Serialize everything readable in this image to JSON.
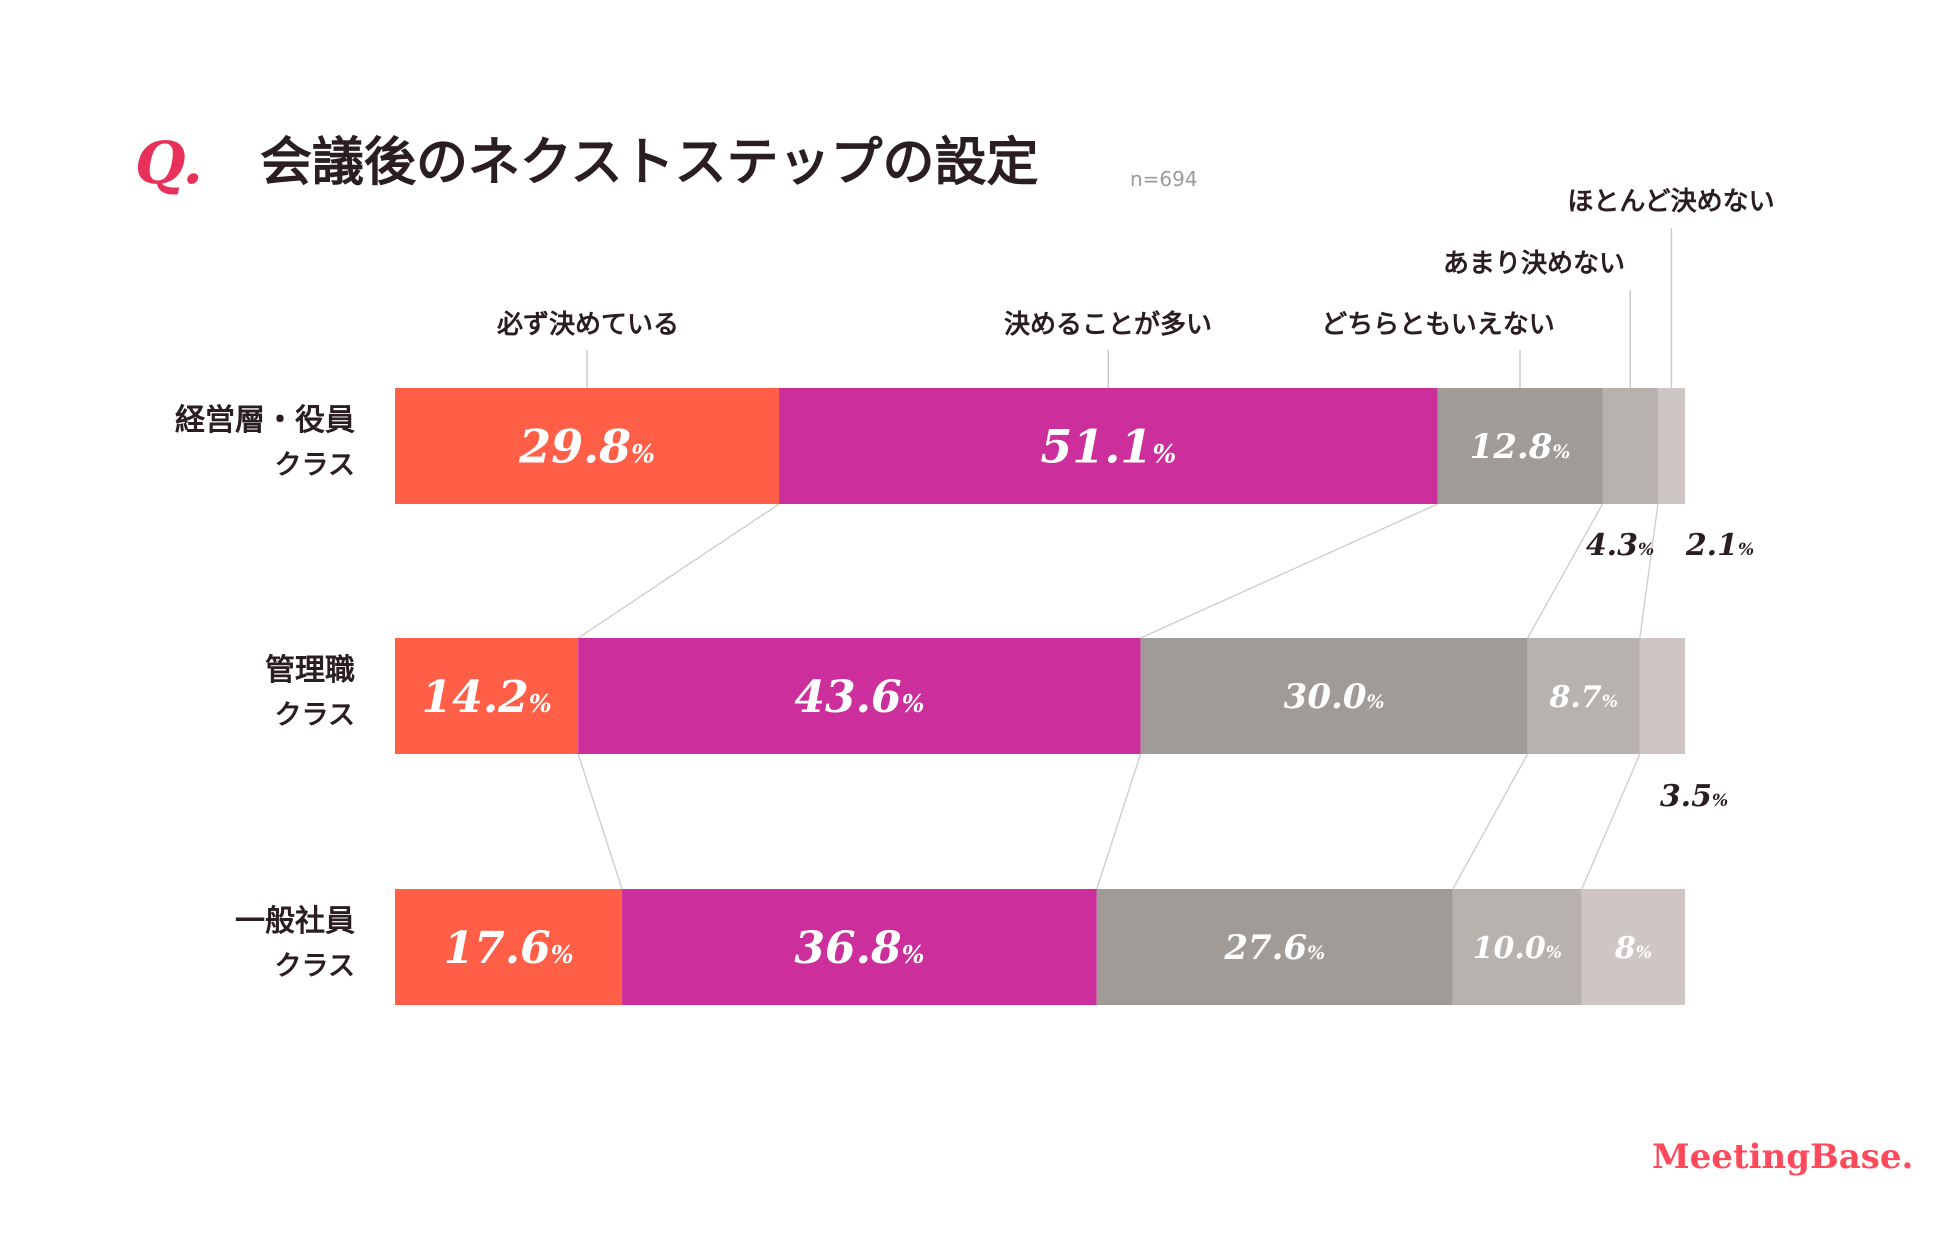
{
  "title": {
    "q": "Q.",
    "text": "会議後のネクストステップの設定",
    "n": "n=694"
  },
  "logo": "MeetingBase.",
  "pct_symbol": "%",
  "colors": {
    "series": [
      "#ff5e47",
      "#cc2e9b",
      "#a09b97",
      "#b8b2af",
      "#cdc6c4"
    ],
    "text_dark": "#2a1e24",
    "connector": "#cfcfcf",
    "title_q": "#e8315a",
    "n_text": "#9a9a9a",
    "logo_a": "#ff4a5c",
    "logo_b": "#c1279a"
  },
  "chart_data": {
    "type": "bar",
    "orientation": "horizontal-stacked-100",
    "title": "会議後のネクストステップの設定",
    "xlim": [
      0,
      100
    ],
    "categories": [
      {
        "name": "経営層・役員",
        "sub": "クラス"
      },
      {
        "name": "管理職",
        "sub": "クラス"
      },
      {
        "name": "一般社員",
        "sub": "クラス"
      }
    ],
    "series": [
      {
        "name": "必ず決めている",
        "values": [
          29.8,
          14.2,
          17.6
        ],
        "labels": [
          "29.8",
          "14.2",
          "17.6"
        ]
      },
      {
        "name": "決めることが多い",
        "values": [
          51.1,
          43.6,
          36.8
        ],
        "labels": [
          "51.1",
          "43.6",
          "36.8"
        ]
      },
      {
        "name": "どちらともいえない",
        "values": [
          12.8,
          30.0,
          27.6
        ],
        "labels": [
          "12.8",
          "30.0",
          "27.6"
        ]
      },
      {
        "name": "あまり決めない",
        "values": [
          4.3,
          8.7,
          10.0
        ],
        "labels": [
          "4.3",
          "8.7",
          "10.0"
        ]
      },
      {
        "name": "ほとんど決めない",
        "values": [
          2.1,
          3.5,
          8.0
        ],
        "labels": [
          "2.1",
          "3.5",
          "8"
        ]
      }
    ]
  }
}
